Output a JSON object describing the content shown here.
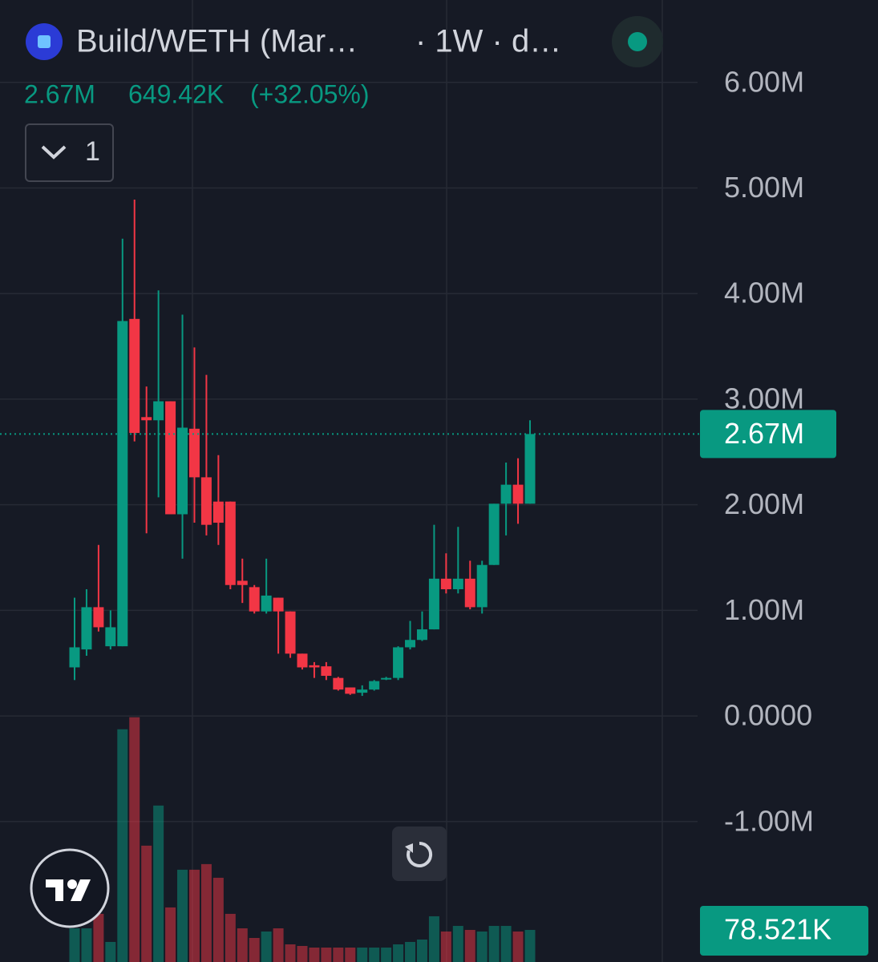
{
  "chart_data": {
    "type": "candlestick",
    "title": "Build/WETH (Mar…",
    "interval": "· 1W · d…",
    "legend_values": [
      "2.67M",
      "649.42K",
      "(+32.05%)"
    ],
    "collapse_count": "1",
    "up_color": "#089981",
    "down_color": "#f23645",
    "grid": true,
    "ylim": [
      -2330000,
      6780000
    ],
    "yticks": [
      {
        "value": 6000000,
        "label": "6.00M"
      },
      {
        "value": 5000000,
        "label": "5.00M"
      },
      {
        "value": 4000000,
        "label": "4.00M"
      },
      {
        "value": 3000000,
        "label": "3.00M"
      },
      {
        "value": 2000000,
        "label": "2.00M"
      },
      {
        "value": 1000000,
        "label": "1.00M"
      },
      {
        "value": 0,
        "label": "0.0000"
      },
      {
        "value": -1000000,
        "label": "-1.00M"
      }
    ],
    "open": [
      460000,
      630000,
      1030000,
      660000,
      660000,
      3760000,
      2830000,
      2800000,
      2980000,
      1910000,
      2720000,
      2260000,
      2030000,
      2030000,
      1280000,
      1220000,
      990000,
      1120000,
      990000,
      590000,
      480000,
      470000,
      360000,
      270000,
      220000,
      250000,
      350000,
      360000,
      650000,
      720000,
      820000,
      1300000,
      1200000,
      1300000,
      1030000,
      1430000,
      2010000,
      2190000,
      2010000
    ],
    "high": [
      1120000,
      1200000,
      1620000,
      1000000,
      4520000,
      4890000,
      3120000,
      4030000,
      2980000,
      3800000,
      3490000,
      3230000,
      2470000,
      2030000,
      1490000,
      1240000,
      1490000,
      1120000,
      990000,
      590000,
      510000,
      510000,
      370000,
      270000,
      290000,
      340000,
      370000,
      660000,
      900000,
      990000,
      1810000,
      1540000,
      1790000,
      1470000,
      1470000,
      2010000,
      2400000,
      2440000,
      2800000
    ],
    "low": [
      340000,
      570000,
      800000,
      630000,
      660000,
      2600000,
      1730000,
      2070000,
      1910000,
      1490000,
      1830000,
      1710000,
      1620000,
      1200000,
      1070000,
      970000,
      970000,
      590000,
      550000,
      440000,
      360000,
      340000,
      240000,
      200000,
      190000,
      240000,
      340000,
      340000,
      630000,
      710000,
      820000,
      1160000,
      1160000,
      1010000,
      970000,
      1430000,
      1710000,
      1820000,
      2010000
    ],
    "close": [
      650000,
      1030000,
      840000,
      840000,
      3740000,
      2680000,
      2800000,
      2980000,
      1910000,
      2730000,
      2260000,
      1810000,
      1830000,
      1240000,
      1240000,
      990000,
      1140000,
      990000,
      590000,
      460000,
      460000,
      380000,
      250000,
      210000,
      250000,
      330000,
      360000,
      650000,
      720000,
      820000,
      1300000,
      1200000,
      1300000,
      1030000,
      1430000,
      2010000,
      2190000,
      2010000,
      2670000
    ],
    "last_price": {
      "value": 2670000,
      "label": "2.67M"
    },
    "volume": {
      "ylim": [
        0,
        800000
      ],
      "values": [
        83700,
        83700,
        130900,
        39300,
        732800,
        772000,
        353300,
        484100,
        151800,
        274800,
        274800,
        293100,
        248600,
        130900,
        83700,
        52300,
        73300,
        83700,
        31400,
        26200,
        20900,
        20900,
        20900,
        20900,
        20900,
        20900,
        20900,
        31400,
        39300,
        47100,
        123000,
        73300,
        91600,
        78500,
        73300,
        91600,
        91600,
        73300,
        78521
      ],
      "last": {
        "value": 78521,
        "label": "78.521K"
      }
    }
  }
}
